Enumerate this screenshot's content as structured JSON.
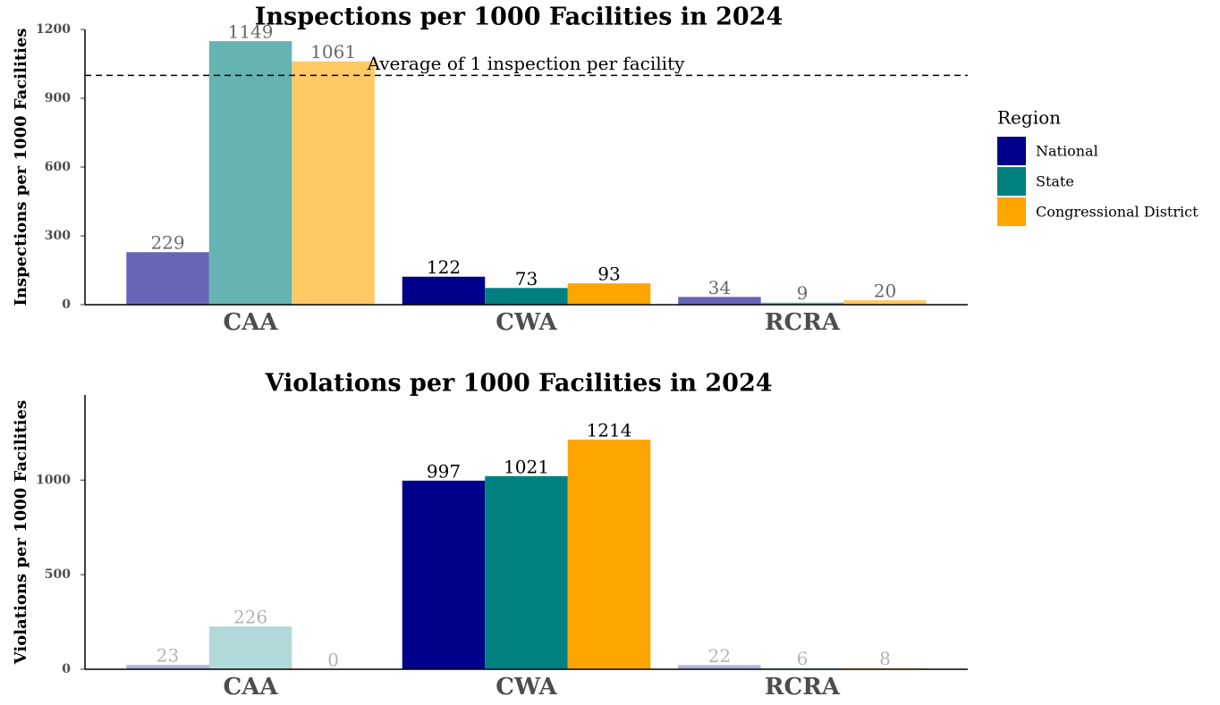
{
  "chart_data": [
    {
      "type": "bar",
      "title": "Inspections per 1000 Facilities in 2024",
      "y_label": "Inspections per 1000 Facilities",
      "categories": [
        "CAA",
        "CWA",
        "RCRA"
      ],
      "series": [
        {
          "name": "National",
          "color": "#00008b",
          "values": [
            229,
            122,
            34
          ]
        },
        {
          "name": "State",
          "color": "#008080",
          "values": [
            1149,
            73,
            9
          ]
        },
        {
          "name": "Congressional District",
          "color": "#ffa500",
          "values": [
            1061,
            93,
            20
          ]
        }
      ],
      "category_opacity": [
        0.6,
        1,
        0.6
      ],
      "ylim": [
        0,
        1200
      ],
      "yticks": [
        0,
        300,
        600,
        900,
        1200
      ],
      "reference_line": {
        "value": 1000,
        "label": "Average of 1 inspection per facility"
      },
      "legend": {
        "title": "Region",
        "position": "right"
      }
    },
    {
      "type": "bar",
      "title": "Violations per 1000 Facilities in 2024",
      "y_label": "Violations per 1000 Facilities",
      "categories": [
        "CAA",
        "CWA",
        "RCRA"
      ],
      "series": [
        {
          "name": "National",
          "color": "#00008b",
          "values": [
            23,
            997,
            22
          ]
        },
        {
          "name": "State",
          "color": "#008080",
          "values": [
            226,
            1021,
            6
          ]
        },
        {
          "name": "Congressional District",
          "color": "#ffa500",
          "values": [
            0,
            1214,
            8
          ]
        }
      ],
      "category_opacity": [
        0.3,
        1,
        0.3
      ],
      "ylim": [
        0,
        1450
      ],
      "yticks": [
        0,
        500,
        1000
      ]
    }
  ]
}
